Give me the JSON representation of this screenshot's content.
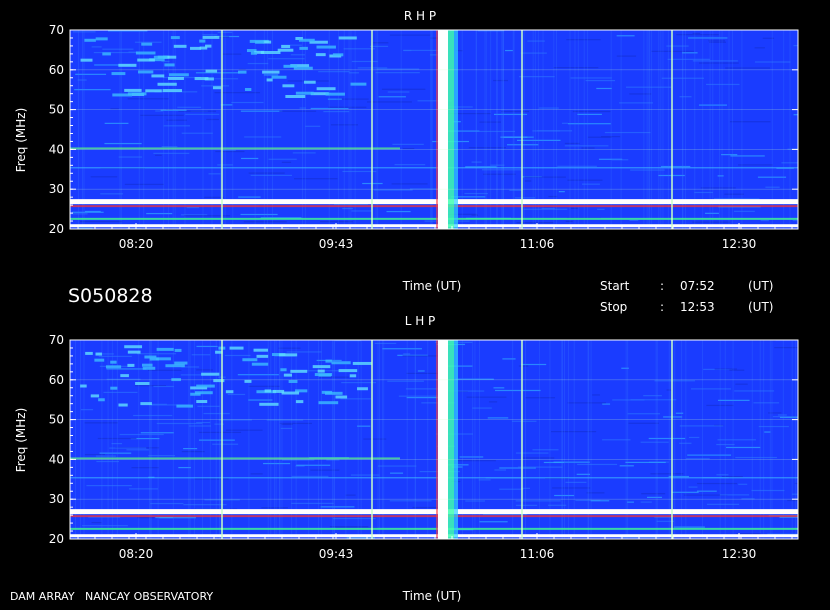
{
  "chart_data": [
    {
      "type": "heatmap",
      "title": "R H P",
      "xlabel": "Time (UT)",
      "ylabel": "Freq (MHz)",
      "ylim": [
        20,
        70
      ],
      "yticks": [
        "20",
        "30",
        "40",
        "50",
        "60",
        "70"
      ],
      "xtick_labels": [
        "08:20",
        "09:43",
        "11:06",
        "12:30"
      ],
      "xlim": [
        "07:52",
        "12:53"
      ],
      "grid": true,
      "colors": {
        "background": "#1a3cff",
        "band": "#ffffff",
        "grid": "#c8ffc8"
      }
    },
    {
      "type": "heatmap",
      "title": "L H P",
      "xlabel": "Time (UT)",
      "ylabel": "Freq (MHz)",
      "ylim": [
        20,
        70
      ],
      "yticks": [
        "20",
        "30",
        "40",
        "50",
        "60",
        "70"
      ],
      "xtick_labels": [
        "08:20",
        "09:43",
        "11:06",
        "12:30"
      ],
      "xlim": [
        "07:52",
        "12:53"
      ],
      "grid": true,
      "colors": {
        "background": "#1a3cff",
        "band": "#ffffff",
        "grid": "#c8ffc8"
      }
    }
  ],
  "header": {
    "code": "S050828",
    "time_label": "Time (UT)",
    "start_label": "Start",
    "stop_label": "Stop",
    "colon": ":",
    "start_time": "07:52",
    "stop_time": "12:53",
    "unit": "(UT)"
  },
  "footer": {
    "observatory": "DAM ARRAY   NANCAY OBSERVATORY",
    "time_label": "Time (UT)"
  }
}
